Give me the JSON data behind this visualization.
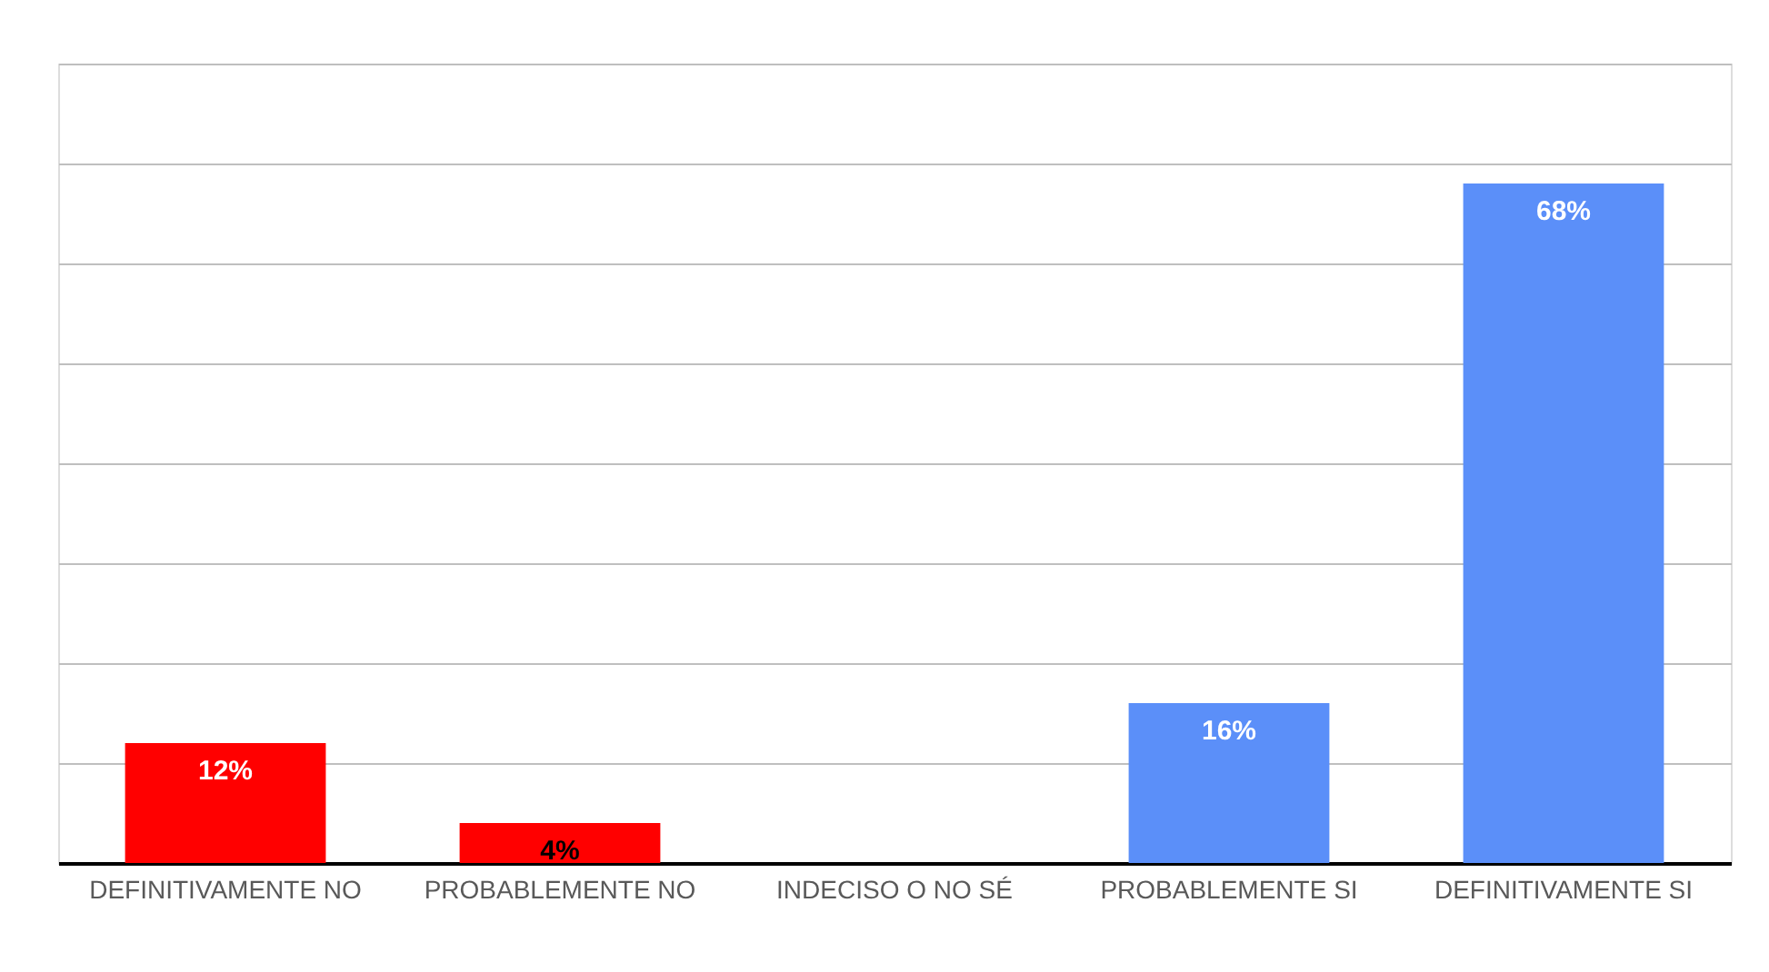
{
  "chart_data": {
    "type": "bar",
    "categories": [
      "DEFINITIVAMENTE NO",
      "PROBABLEMENTE NO",
      "INDECISO O NO SÉ",
      "PROBABLEMENTE SI",
      "DEFINITIVAMENTE SI"
    ],
    "values": [
      12,
      4,
      0,
      16,
      68
    ],
    "colors": [
      "#ff0000",
      "#ff0000",
      "#ff0000",
      "#5b8ff9",
      "#5b8ff9"
    ],
    "value_labels": [
      "12%",
      "4%",
      null,
      "16%",
      "68%"
    ],
    "ylim": [
      0,
      80
    ],
    "yticks": [
      {
        "value": 0,
        "label": null
      },
      {
        "value": 10,
        "label": null
      },
      {
        "value": 20,
        "label": null
      },
      {
        "value": 30,
        "label": null
      },
      {
        "value": 40,
        "label": null
      },
      {
        "value": 50,
        "label": null
      },
      {
        "value": 60,
        "label": null
      },
      {
        "value": 70,
        "label": null
      },
      {
        "value": 80,
        "label": null
      }
    ],
    "grid": "y"
  }
}
